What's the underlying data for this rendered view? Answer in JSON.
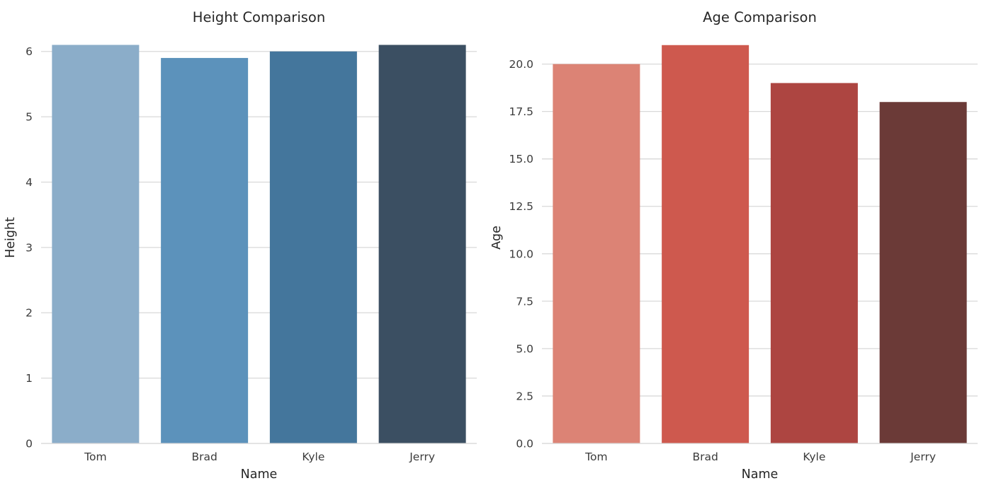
{
  "figure": {
    "background": "#ffffff",
    "grid_color": "#d9d9d9",
    "text_color": "#262626",
    "tick_label_color": "#3b3b3b"
  },
  "chart_data": [
    {
      "type": "bar",
      "title": "Height Comparison",
      "xlabel": "Name",
      "ylabel": "Height",
      "categories": [
        "Tom",
        "Brad",
        "Kyle",
        "Jerry"
      ],
      "values": [
        6.1,
        5.9,
        6.0,
        6.1
      ],
      "ylim": [
        0,
        6.3
      ],
      "ytick_values": [
        0,
        1,
        2,
        3,
        4,
        5,
        6
      ],
      "ytick_labels": [
        "0",
        "1",
        "2",
        "3",
        "4",
        "5",
        "6"
      ],
      "bar_colors": [
        "#8BADC9",
        "#5C92BB",
        "#44769C",
        "#3B4F62"
      ],
      "grid": true,
      "legend": false
    },
    {
      "type": "bar",
      "title": "Age Comparison",
      "xlabel": "Name",
      "ylabel": "Age",
      "categories": [
        "Tom",
        "Brad",
        "Kyle",
        "Jerry"
      ],
      "values": [
        20,
        21,
        19,
        18
      ],
      "ylim": [
        0,
        21.7
      ],
      "ytick_values": [
        0,
        2.5,
        5,
        7.5,
        10,
        12.5,
        15,
        17.5,
        20
      ],
      "ytick_labels": [
        "0.0",
        "2.5",
        "5.0",
        "7.5",
        "10.0",
        "12.5",
        "15.0",
        "17.5",
        "20.0"
      ],
      "bar_colors": [
        "#DC8375",
        "#CE594E",
        "#AD4541",
        "#6B3A37"
      ],
      "grid": true,
      "legend": false
    }
  ]
}
